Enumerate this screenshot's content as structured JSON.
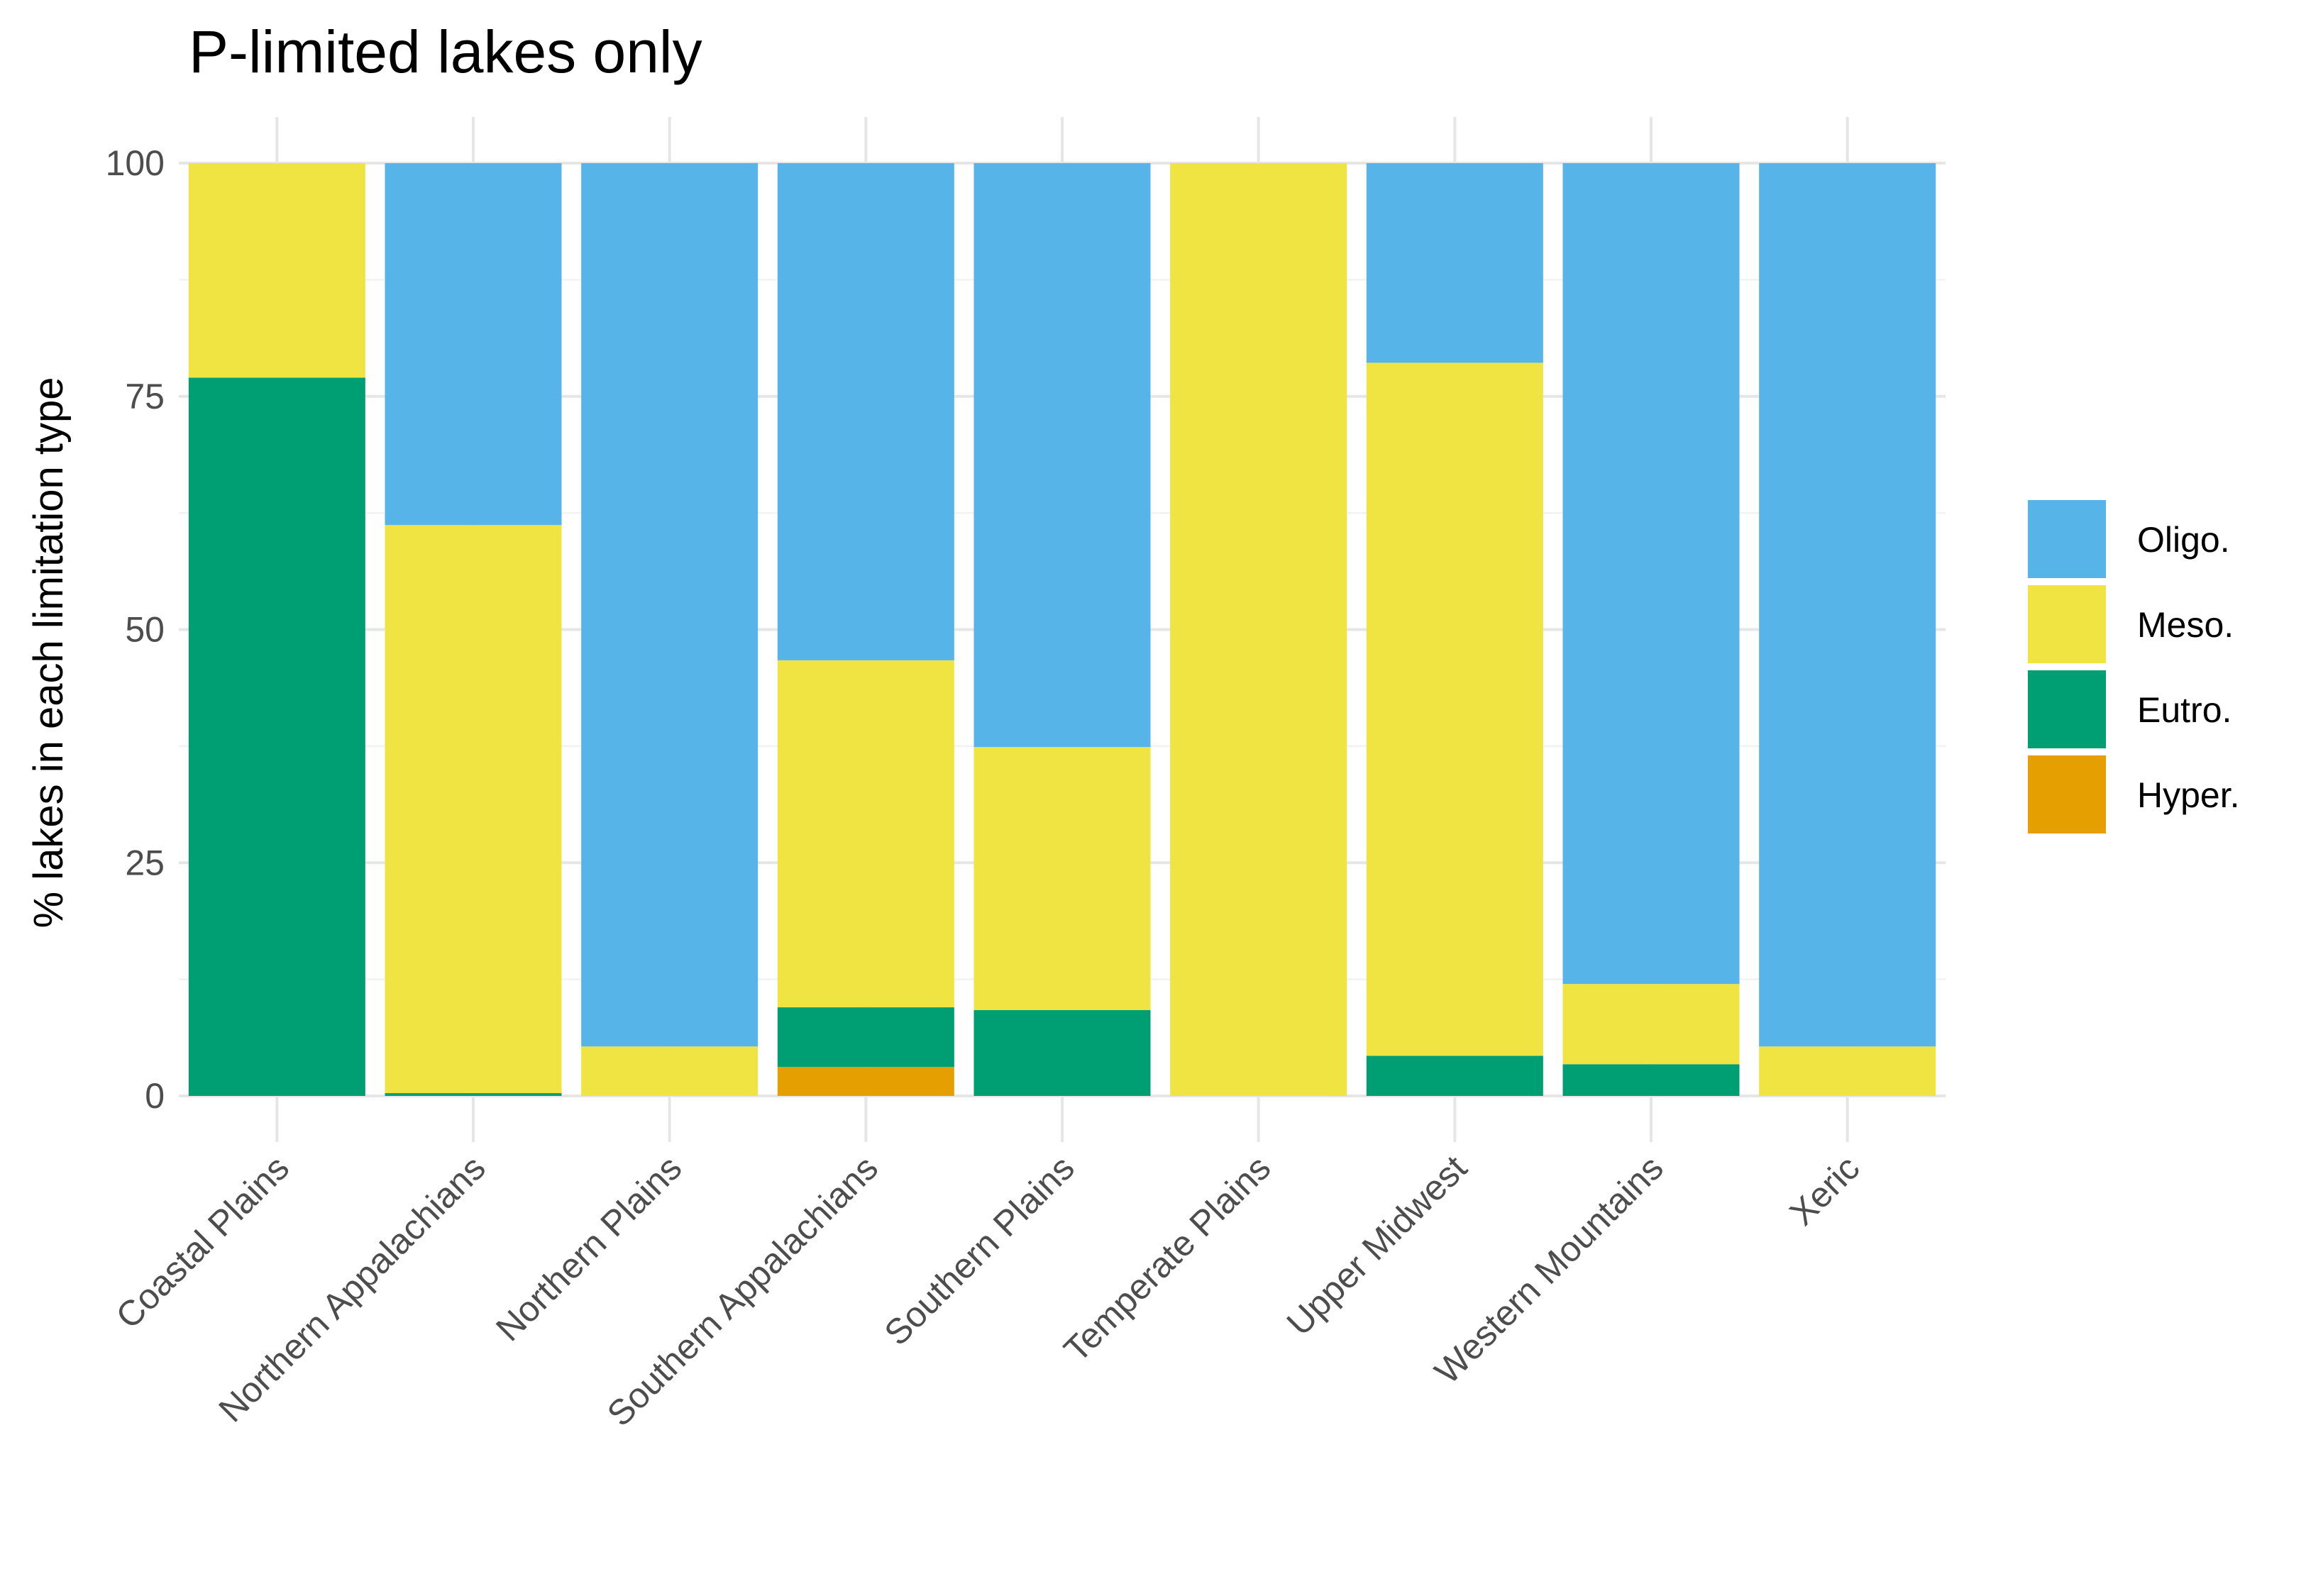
{
  "chart_data": {
    "type": "bar",
    "stacked": true,
    "title": "P-limited lakes only",
    "xlabel": "",
    "ylabel": "% lakes in each limitation type",
    "ylim": [
      0,
      100
    ],
    "yticks": [
      0,
      25,
      50,
      75,
      100
    ],
    "grid": true,
    "legend_position": "right",
    "categories": [
      "Coastal Plains",
      "Northern Appalachians",
      "Northern Plains",
      "Southern Appalachians",
      "Southern Plains",
      "Temperate Plains",
      "Upper Midwest",
      "Western Mountains",
      "Xeric"
    ],
    "series": [
      {
        "name": "Hyper.",
        "color": "#E69F00",
        "values": [
          0,
          0,
          0,
          3.1,
          0,
          0,
          0,
          0,
          0
        ]
      },
      {
        "name": "Eutro.",
        "color": "#009E73",
        "values": [
          77,
          0.3,
          0,
          6.4,
          9.2,
          0,
          4.3,
          3.4,
          0
        ]
      },
      {
        "name": "Meso.",
        "color": "#F0E442",
        "values": [
          23,
          60.9,
          5.3,
          37.2,
          28.2,
          100,
          74.3,
          8.6,
          5.3
        ]
      },
      {
        "name": "Oligo.",
        "color": "#56B4E9",
        "values": [
          0,
          38.8,
          94.7,
          53.3,
          62.6,
          0,
          21.4,
          88,
          94.7
        ]
      }
    ],
    "legend_order": [
      "Oligo.",
      "Meso.",
      "Eutro.",
      "Hyper."
    ]
  }
}
